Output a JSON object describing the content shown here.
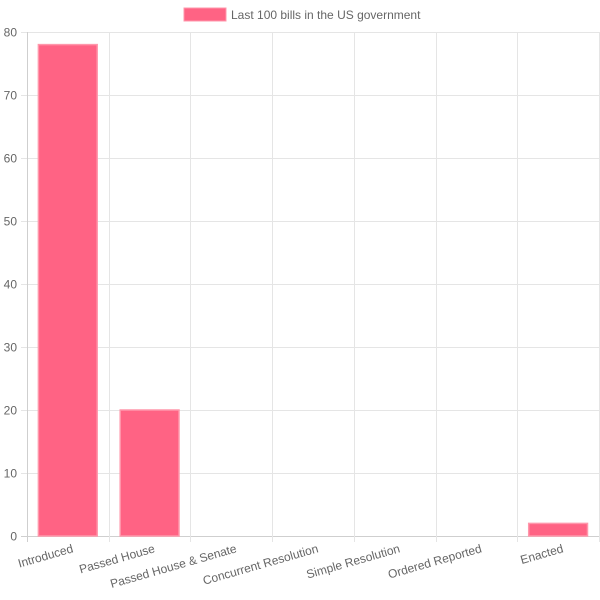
{
  "chart_data": {
    "type": "bar",
    "categories": [
      "Introduced",
      "Passed House",
      "Passed House & Senate",
      "Concurrent Resolution",
      "Simple Resolution",
      "Ordered Reported",
      "Enacted"
    ],
    "series": [
      {
        "name": "Last 100 bills in the US government",
        "values": [
          78,
          20,
          0,
          0,
          0,
          0,
          2
        ]
      }
    ],
    "ylim": [
      0,
      80
    ],
    "yticks": [
      0,
      10,
      20,
      30,
      40,
      50,
      60,
      70,
      80
    ],
    "grid": true,
    "legend": "top-center",
    "colors": {
      "bar_fill": "#ff6384",
      "bar_border": "#ff97ab"
    }
  }
}
